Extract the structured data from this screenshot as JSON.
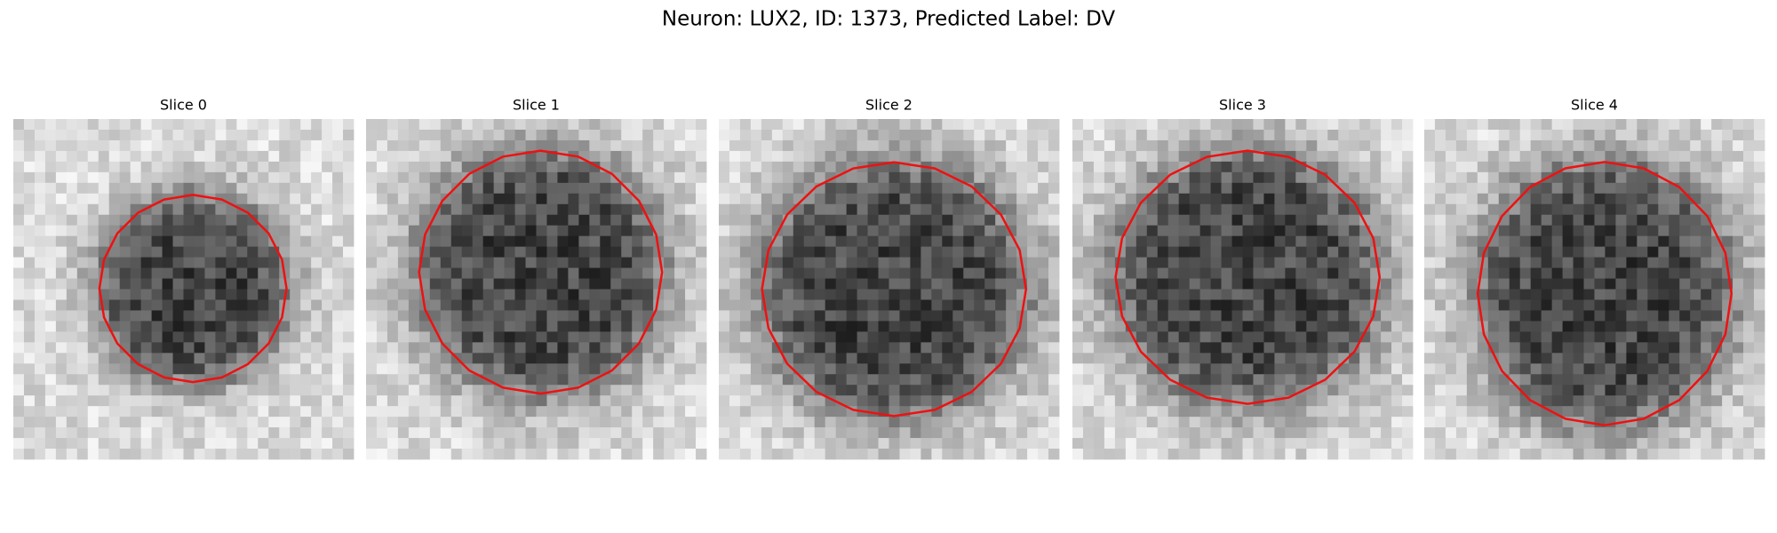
{
  "title": "Neuron: LUX2, ID: 1373, Predicted Label: DV",
  "panels": [
    {
      "title": "Slice 0"
    },
    {
      "title": "Slice 1"
    },
    {
      "title": "Slice 2"
    },
    {
      "title": "Slice 3"
    },
    {
      "title": "Slice 4"
    }
  ]
}
